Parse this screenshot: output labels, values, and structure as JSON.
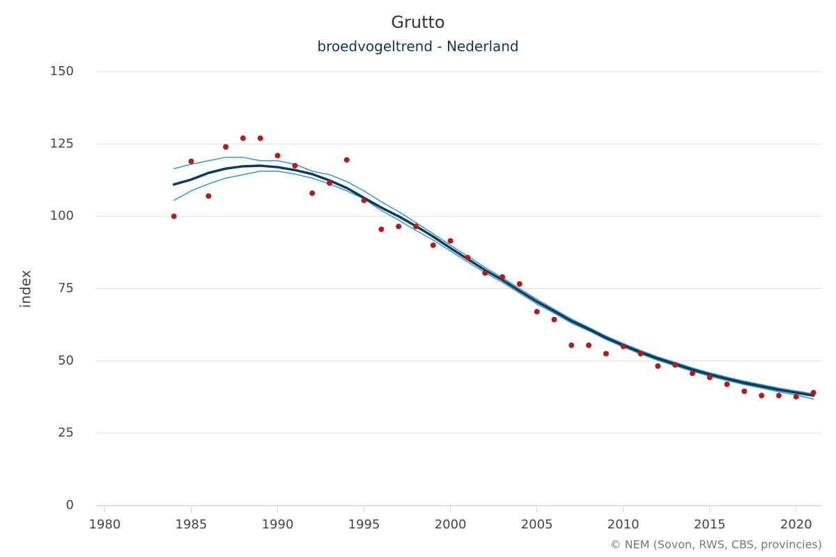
{
  "chart_data": {
    "type": "line",
    "title": "Grutto",
    "subtitle": "broedvogeltrend - Nederland",
    "y_label": "index",
    "credits": "© NEM (Sovon, RWS, CBS, provincies)",
    "x": [
      1984,
      1985,
      1986,
      1987,
      1988,
      1989,
      1990,
      1991,
      1992,
      1993,
      1994,
      1995,
      1996,
      1997,
      1998,
      1999,
      2000,
      2001,
      2002,
      2003,
      2004,
      2005,
      2006,
      2007,
      2008,
      2009,
      2010,
      2011,
      2012,
      2013,
      2014,
      2015,
      2016,
      2017,
      2018,
      2019,
      2020,
      2021
    ],
    "xlim": [
      1979.5,
      2021.5
    ],
    "xticks": [
      1980,
      1985,
      1990,
      1995,
      2000,
      2005,
      2010,
      2015,
      2020
    ],
    "ylim": [
      0,
      150
    ],
    "yticks": [
      0,
      25,
      50,
      75,
      100,
      125,
      150
    ],
    "grid": true,
    "series": [
      {
        "mode": "line",
        "color": "#3a95c4",
        "width": 1.5,
        "values": [
          116.5,
          118,
          119.2,
          120.4,
          120.4,
          119.2,
          119.2,
          118,
          115.6,
          114.4,
          112,
          108.8,
          105,
          101.6,
          97.8,
          94,
          90,
          86.2,
          82.3,
          78.8,
          75,
          71.3,
          67.9,
          64.5,
          61.6,
          58.6,
          56,
          53.6,
          51.4,
          49.5,
          47.6,
          45.9,
          44.4,
          43,
          41.8,
          40.6,
          39.6,
          38.6
        ]
      },
      {
        "mode": "line",
        "color": "#3a95c4",
        "width": 1.5,
        "values": [
          105.5,
          108.8,
          111.2,
          113.2,
          114.4,
          115.6,
          115.6,
          114.6,
          113.2,
          111.2,
          108.8,
          106,
          102,
          98.7,
          95.1,
          91.8,
          88,
          84.2,
          80.5,
          77.2,
          73.4,
          69.7,
          66.5,
          63.1,
          60.4,
          57.4,
          54.8,
          52.4,
          50.2,
          48.3,
          46.4,
          44.7,
          43.2,
          41.8,
          40.6,
          39.3,
          38.2,
          36.8
        ]
      },
      {
        "mode": "line",
        "color": "#0b3a5e",
        "width": 3.5,
        "values": [
          111,
          112.7,
          115,
          116.5,
          117.3,
          117.5,
          117,
          116,
          114.6,
          112.4,
          109.8,
          106.4,
          103,
          100,
          96.6,
          93,
          89,
          85.2,
          81.4,
          78,
          74.2,
          70.5,
          67.2,
          63.8,
          61,
          58,
          55.4,
          53,
          50.8,
          48.9,
          47,
          45.3,
          43.8,
          42.4,
          41.2,
          40,
          39,
          38
        ]
      },
      {
        "mode": "markers",
        "color": "#b01c1c",
        "values": [
          100,
          119,
          107,
          124,
          127,
          127,
          121,
          117.5,
          108,
          111.5,
          119.5,
          105.5,
          95.5,
          96.5,
          96.5,
          90,
          91.5,
          85.7,
          80.4,
          79,
          76.6,
          67,
          64.3,
          55.4,
          55.4,
          52.5,
          55,
          52.5,
          48.2,
          48.6,
          45.7,
          44.3,
          41.9,
          39.5,
          38,
          38,
          37.6,
          39
        ]
      }
    ]
  }
}
